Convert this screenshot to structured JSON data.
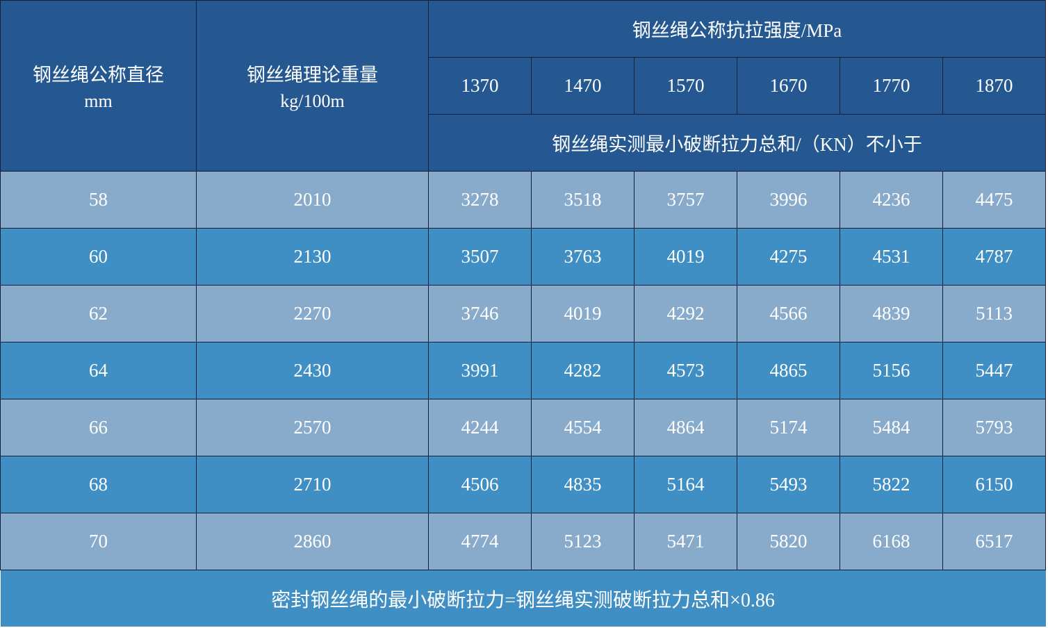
{
  "header": {
    "diameter_label": "钢丝绳公称直径",
    "diameter_unit": "mm",
    "weight_label": "钢丝绳理论重量",
    "weight_unit": "kg/100m",
    "strength_label": "钢丝绳公称抗拉强度/MPa",
    "strength_grades": [
      "1370",
      "1470",
      "1570",
      "1670",
      "1770",
      "1870"
    ],
    "force_label": "钢丝绳实测最小破断拉力总和/（KN）不小于"
  },
  "rows": [
    {
      "diameter": "58",
      "weight": "2010",
      "forces": [
        "3278",
        "3518",
        "3757",
        "3996",
        "4236",
        "4475"
      ]
    },
    {
      "diameter": "60",
      "weight": "2130",
      "forces": [
        "3507",
        "3763",
        "4019",
        "4275",
        "4531",
        "4787"
      ]
    },
    {
      "diameter": "62",
      "weight": "2270",
      "forces": [
        "3746",
        "4019",
        "4292",
        "4566",
        "4839",
        "5113"
      ]
    },
    {
      "diameter": "64",
      "weight": "2430",
      "forces": [
        "3991",
        "4282",
        "4573",
        "4865",
        "5156",
        "5447"
      ]
    },
    {
      "diameter": "66",
      "weight": "2570",
      "forces": [
        "4244",
        "4554",
        "4864",
        "5174",
        "5484",
        "5793"
      ]
    },
    {
      "diameter": "68",
      "weight": "2710",
      "forces": [
        "4506",
        "4835",
        "5164",
        "5493",
        "5822",
        "6150"
      ]
    },
    {
      "diameter": "70",
      "weight": "2860",
      "forces": [
        "4774",
        "5123",
        "5471",
        "5820",
        "6168",
        "6517"
      ]
    }
  ],
  "footer": {
    "note": "密封钢丝绳的最小破断拉力=钢丝绳实测破断拉力总和×0.86"
  },
  "colors": {
    "header_bg": "#255890",
    "row_light_bg": "#88abcb",
    "row_dark_bg": "#3f8fc4",
    "text": "#ffffff"
  }
}
